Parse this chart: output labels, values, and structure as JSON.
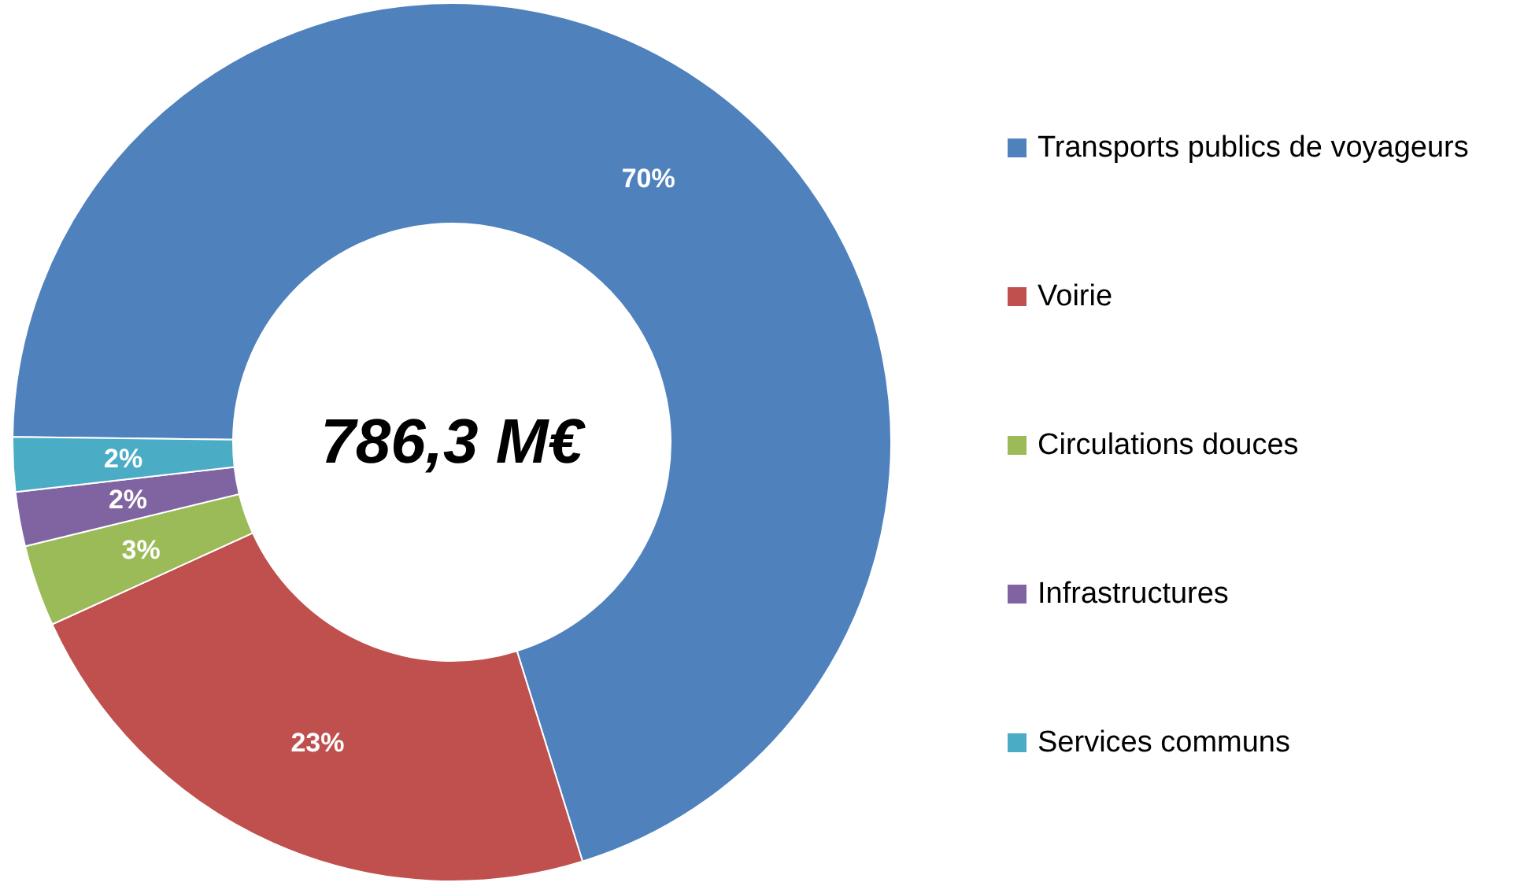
{
  "chart_data": {
    "type": "donut",
    "categories": [
      "Transports publics de voyageurs",
      "Voirie",
      "Circulations douces",
      "Infrastructures",
      "Services communs"
    ],
    "values": [
      70,
      23,
      3,
      2,
      2
    ],
    "colors": [
      "#4f81bd",
      "#c0504d",
      "#9bbb59",
      "#8064a2",
      "#4bacc6"
    ],
    "value_labels": [
      "70%",
      "23%",
      "3%",
      "2%",
      "2%"
    ],
    "annotations": [
      "786,3 M€"
    ],
    "legend": "right"
  }
}
